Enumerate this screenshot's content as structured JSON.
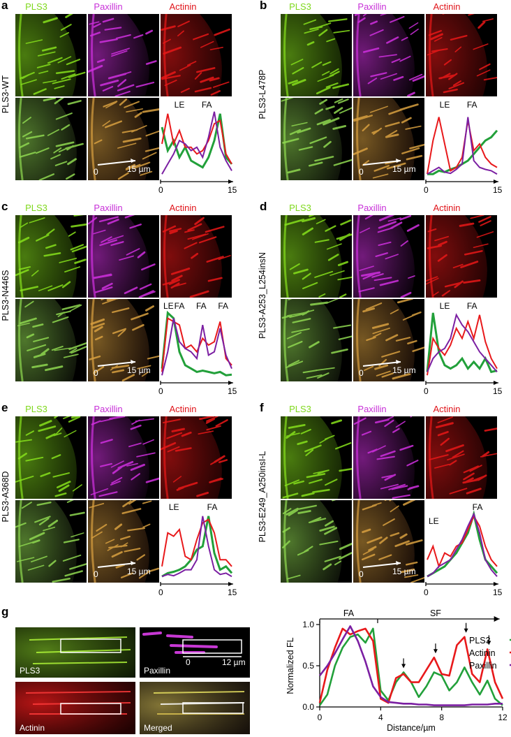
{
  "channels": {
    "pls3": "PLS3",
    "paxillin": "Paxillin",
    "actinin": "Actinin"
  },
  "colors": {
    "pls3": "#22a03a",
    "paxillin": "#7b1fa2",
    "actinin": "#e8191b",
    "pls3_img": "#7fd81c",
    "pax_img": "#c830d8",
    "act_img": "#e0141a"
  },
  "panels": [
    {
      "letter": "a",
      "mutant": "PLS3-WT",
      "arrow_start": "0",
      "arrow_end": "15 µm",
      "x_start": "0",
      "x_end": "15",
      "peaks": [
        "LE",
        "FA"
      ]
    },
    {
      "letter": "b",
      "mutant": "PLS3-L478P",
      "arrow_start": "0",
      "arrow_end": "15 µm",
      "x_start": "0",
      "x_end": "15",
      "peaks": [
        "LE",
        "FA"
      ]
    },
    {
      "letter": "c",
      "mutant": "PLS3-N446S",
      "arrow_start": "0",
      "arrow_end": "15 µm",
      "x_start": "0",
      "x_end": "15",
      "peaks": [
        "LE",
        "FA",
        "FA",
        "FA"
      ]
    },
    {
      "letter": "d",
      "mutant": "PLS3-A253_L254insN",
      "arrow_start": "0",
      "arrow_end": "15 µm",
      "x_start": "0",
      "x_end": "15",
      "peaks": [
        "LE",
        "FA"
      ]
    },
    {
      "letter": "e",
      "mutant": "PLS3-A368D",
      "arrow_start": "0",
      "arrow_end": "15 µm",
      "x_start": "0",
      "x_end": "15",
      "peaks": [
        "LE",
        "FA"
      ]
    },
    {
      "letter": "f",
      "mutant": "PLS3-E249_A250insI-L",
      "arrow_start": "0",
      "arrow_end": "15 µm",
      "x_start": "0",
      "x_end": "15",
      "peaks": [
        "LE",
        "FA"
      ]
    }
  ],
  "panel_g": {
    "letter": "g",
    "image_labels": {
      "pls3": "PLS3",
      "paxillin": "Paxillin",
      "actinin": "Actinin",
      "merged": "Merged"
    },
    "scale_start": "0",
    "scale_end": "12 µm",
    "region_fa": "FA",
    "region_sf": "SF"
  },
  "chart_data": {
    "type": "line",
    "xlabel": "Distance/µm",
    "ylabel": "Normalized FL",
    "xlim": [
      0,
      12
    ],
    "ylim": [
      0,
      1.0
    ],
    "xticks": [
      "0",
      "4",
      "8",
      "12"
    ],
    "yticks": [
      "0.0",
      "0.5",
      "1.0"
    ],
    "legend": "right",
    "x": [
      0,
      0.5,
      1,
      1.5,
      2,
      2.5,
      3,
      3.5,
      4,
      4.5,
      5,
      5.5,
      6,
      6.5,
      7,
      7.5,
      8,
      8.5,
      9,
      9.5,
      10,
      10.5,
      11,
      11.5,
      12
    ],
    "series": [
      {
        "name": "PLS3",
        "values": [
          0.02,
          0.15,
          0.5,
          0.72,
          0.85,
          0.88,
          0.78,
          0.95,
          0.2,
          0.08,
          0.3,
          0.42,
          0.3,
          0.12,
          0.25,
          0.42,
          0.38,
          0.2,
          0.3,
          0.48,
          0.3,
          0.15,
          0.32,
          0.1,
          0.02
        ]
      },
      {
        "name": "Actinin",
        "values": [
          0.05,
          0.45,
          0.72,
          0.95,
          0.88,
          0.92,
          0.95,
          0.8,
          0.1,
          0.05,
          0.35,
          0.4,
          0.3,
          0.3,
          0.45,
          0.6,
          0.4,
          0.38,
          0.75,
          0.85,
          0.4,
          0.3,
          0.7,
          0.3,
          0.1
        ]
      },
      {
        "name": "Paxillin",
        "values": [
          0.38,
          0.5,
          0.65,
          0.82,
          0.98,
          0.8,
          0.55,
          0.25,
          0.12,
          0.06,
          0.05,
          0.04,
          0.04,
          0.03,
          0.03,
          0.02,
          0.02,
          0.02,
          0.02,
          0.02,
          0.03,
          0.03,
          0.03,
          0.04,
          0.04
        ]
      }
    ],
    "arrow_markers_x": [
      5.5,
      7.6,
      9.6,
      11.1
    ]
  }
}
